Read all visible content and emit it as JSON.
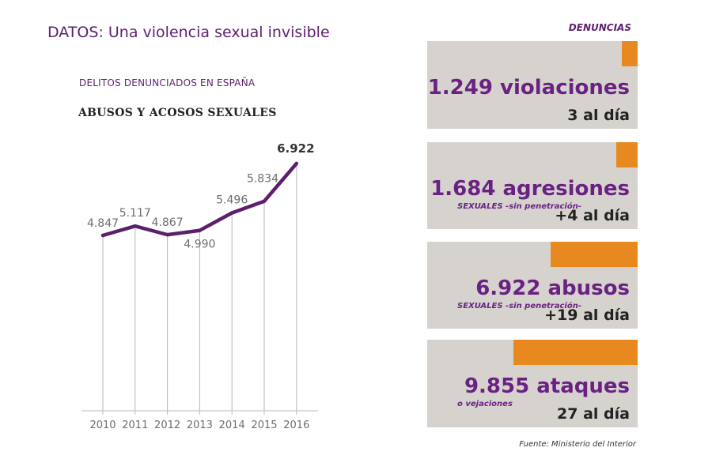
{
  "header": {
    "title": "DATOS: Una violencia sexual invisible",
    "subtitle": "DELITOS DENUNCIADOS EN ESPAÑA"
  },
  "chart_data": {
    "type": "line",
    "title": "ABUSOS Y ACOSOS SEXUALES",
    "x": [
      "2010",
      "2011",
      "2012",
      "2013",
      "2014",
      "2015",
      "2016"
    ],
    "series": [
      {
        "values": [
          4847,
          5117,
          4867,
          4990,
          5496,
          5834,
          6922
        ],
        "labels": [
          "4.847",
          "5.117",
          "4.867",
          "4.990",
          "5.496",
          "5.834",
          "6.922"
        ]
      }
    ],
    "ylim": [
      2500,
      7200
    ],
    "grid": false,
    "line_color": "#5c1f6e"
  },
  "panel": {
    "heading": "DENUNCIAS",
    "cards": [
      {
        "main": "1.249 violaciones",
        "sub": "",
        "rate": "3 al día",
        "share": 0.127
      },
      {
        "main": "1.684 agresiones",
        "sub": "SEXUALES -sin penetración-",
        "rate": "+4 al día",
        "share": 0.171
      },
      {
        "main": "6.922 abusos",
        "sub": "SEXUALES -sin penetración-",
        "rate": "+19 al día",
        "share": 0.702
      },
      {
        "main": "9.855 ataques",
        "sub": "o vejaciones",
        "rate": "27 al día",
        "share": 1.0
      }
    ],
    "source": "Fuente: Ministerio del Interior"
  },
  "colors": {
    "purple": "#5c1f6e",
    "orange": "#e8891f",
    "card_bg": "#d6d3cf"
  }
}
